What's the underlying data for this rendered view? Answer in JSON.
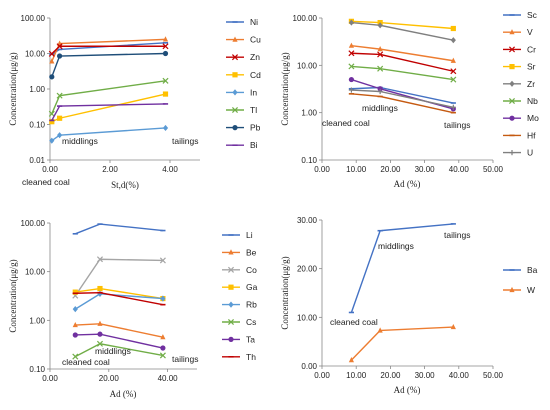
{
  "colors": {
    "blue": "#4472c4",
    "orange": "#ed7d31",
    "red": "#c00000",
    "gold": "#ffc000",
    "lightblue": "#5b9bd5",
    "green": "#70ad47",
    "navy": "#1f4e79",
    "purple": "#7030a0",
    "yellow": "#ffd700",
    "gray": "#7f7f7f",
    "darkred": "#c55a11",
    "lightgray": "#a5a5a5",
    "darkpurple": "#5b2c6f",
    "darkgreen": "#548235",
    "burgundy": "#a50021"
  },
  "chart_data": [
    {
      "type": "line",
      "log_y": true,
      "ylabel": "Concentration(μg/g)",
      "xlabel": "St,d(%)",
      "xlim": [
        0,
        5
      ],
      "ylim": [
        0.01,
        100
      ],
      "x_ticks": [
        "0.00",
        "2.00",
        "4.00"
      ],
      "y_ticks": [
        "0.01",
        "0.10",
        "1.00",
        "10.00",
        "100.00"
      ],
      "x": [
        0.06,
        0.32,
        3.85
      ],
      "annotations": [
        "cleaned coal",
        "middlings",
        "tailings"
      ],
      "series": [
        {
          "name": "Ni",
          "color": "#4472c4",
          "marker": "dash",
          "values": [
            9.5,
            13,
            20
          ]
        },
        {
          "name": "Cu",
          "color": "#ed7d31",
          "marker": "triangle",
          "values": [
            6,
            19,
            25
          ]
        },
        {
          "name": "Zn",
          "color": "#c00000",
          "marker": "x",
          "values": [
            9.8,
            16,
            16
          ]
        },
        {
          "name": "Cd",
          "color": "#ffc000",
          "marker": "square",
          "values": [
            0.12,
            0.15,
            0.72
          ]
        },
        {
          "name": "In",
          "color": "#5b9bd5",
          "marker": "diamond",
          "values": [
            0.035,
            0.05,
            0.08
          ]
        },
        {
          "name": "Tl",
          "color": "#70ad47",
          "marker": "x",
          "values": [
            0.2,
            0.65,
            1.7
          ]
        },
        {
          "name": "Pb",
          "color": "#1f4e79",
          "marker": "circle",
          "values": [
            2.2,
            8.5,
            10
          ]
        },
        {
          "name": "Bi",
          "color": "#7030a0",
          "marker": "dash",
          "values": [
            0.13,
            0.33,
            0.38
          ]
        }
      ]
    },
    {
      "type": "line",
      "log_y": true,
      "ylabel": "Concentration(μg/g)",
      "xlabel": "Ad (%)",
      "xlim": [
        0,
        50
      ],
      "ylim": [
        0.1,
        100
      ],
      "x_ticks": [
        "0.00",
        "10.00",
        "20.00",
        "30.00",
        "40.00",
        "50.00"
      ],
      "y_ticks": [
        "0.10",
        "1.00",
        "10.00",
        "100.00"
      ],
      "x": [
        8.6,
        17.0,
        38.4
      ],
      "annotations": [
        "cleaned coal",
        "middlings",
        "tailings"
      ],
      "series": [
        {
          "name": "Sc",
          "color": "#4472c4",
          "marker": "dash",
          "values": [
            3.2,
            3.4,
            1.6
          ]
        },
        {
          "name": "V",
          "color": "#ed7d31",
          "marker": "triangle",
          "values": [
            26,
            22,
            12.5
          ]
        },
        {
          "name": "Cr",
          "color": "#c00000",
          "marker": "x",
          "values": [
            18,
            17,
            7.5
          ]
        },
        {
          "name": "Sr",
          "color": "#ffc000",
          "marker": "square",
          "values": [
            85,
            80,
            60
          ]
        },
        {
          "name": "Zr",
          "color": "#7f7f7f",
          "marker": "diamond",
          "values": [
            80,
            70,
            34
          ]
        },
        {
          "name": "Nb",
          "color": "#70ad47",
          "marker": "x",
          "values": [
            9.5,
            8.5,
            5
          ]
        },
        {
          "name": "Mo",
          "color": "#7030a0",
          "marker": "circle",
          "values": [
            5,
            3.2,
            1.2
          ]
        },
        {
          "name": "Hf",
          "color": "#c55a11",
          "marker": "dash",
          "values": [
            2.5,
            2.2,
            1.0
          ]
        },
        {
          "name": "U",
          "color": "#7f7f7f",
          "marker": "plus",
          "values": [
            3.0,
            2.8,
            1.3
          ]
        }
      ]
    },
    {
      "type": "line",
      "log_y": true,
      "ylabel": "Concentration(μg/g)",
      "xlabel": "Ad (%)",
      "xlim": [
        0,
        50
      ],
      "ylim": [
        0.1,
        100
      ],
      "x_ticks": [
        "0.00",
        "20.00",
        "40.00"
      ],
      "y_ticks": [
        "0.10",
        "1.00",
        "10.00",
        "100.00"
      ],
      "x": [
        8.6,
        17.0,
        38.4
      ],
      "annotations": [
        "cleaned coal",
        "middlings",
        "tailings"
      ],
      "series": [
        {
          "name": "Li",
          "color": "#4472c4",
          "marker": "dash",
          "values": [
            60,
            95,
            70
          ]
        },
        {
          "name": "Be",
          "color": "#ed7d31",
          "marker": "triangle",
          "values": [
            0.8,
            0.85,
            0.45
          ]
        },
        {
          "name": "Co",
          "color": "#a5a5a5",
          "marker": "x",
          "values": [
            3.2,
            18,
            17
          ]
        },
        {
          "name": "Ga",
          "color": "#ffc000",
          "marker": "square",
          "values": [
            3.8,
            4.5,
            2.8
          ]
        },
        {
          "name": "Rb",
          "color": "#5b9bd5",
          "marker": "diamond",
          "values": [
            1.7,
            3.5,
            2.8
          ]
        },
        {
          "name": "Cs",
          "color": "#70ad47",
          "marker": "x",
          "values": [
            0.18,
            0.33,
            0.19
          ]
        },
        {
          "name": "Ta",
          "color": "#7030a0",
          "marker": "circle",
          "values": [
            0.5,
            0.52,
            0.27
          ]
        },
        {
          "name": "Th",
          "color": "#c00000",
          "marker": "dash",
          "values": [
            3.6,
            3.7,
            2.1
          ]
        }
      ]
    },
    {
      "type": "line",
      "log_y": false,
      "ylabel": "Concentration(μg/g)",
      "xlabel": "Ad (%)",
      "xlim": [
        0,
        50
      ],
      "ylim": [
        0,
        30
      ],
      "x_ticks": [
        "0.00",
        "10.00",
        "20.00",
        "30.00",
        "40.00",
        "50.00"
      ],
      "y_ticks": [
        "0.00",
        "10.00",
        "20.00",
        "30.00"
      ],
      "x": [
        8.6,
        17.0,
        38.4
      ],
      "annotations": [
        "cleaned coal",
        "middlings",
        "tailings"
      ],
      "series": [
        {
          "name": "Ba",
          "color": "#4472c4",
          "marker": "dash",
          "values": [
            11,
            27.8,
            29.2
          ]
        },
        {
          "name": "W",
          "color": "#ed7d31",
          "marker": "triangle",
          "values": [
            1.2,
            7.3,
            8
          ]
        }
      ]
    }
  ]
}
